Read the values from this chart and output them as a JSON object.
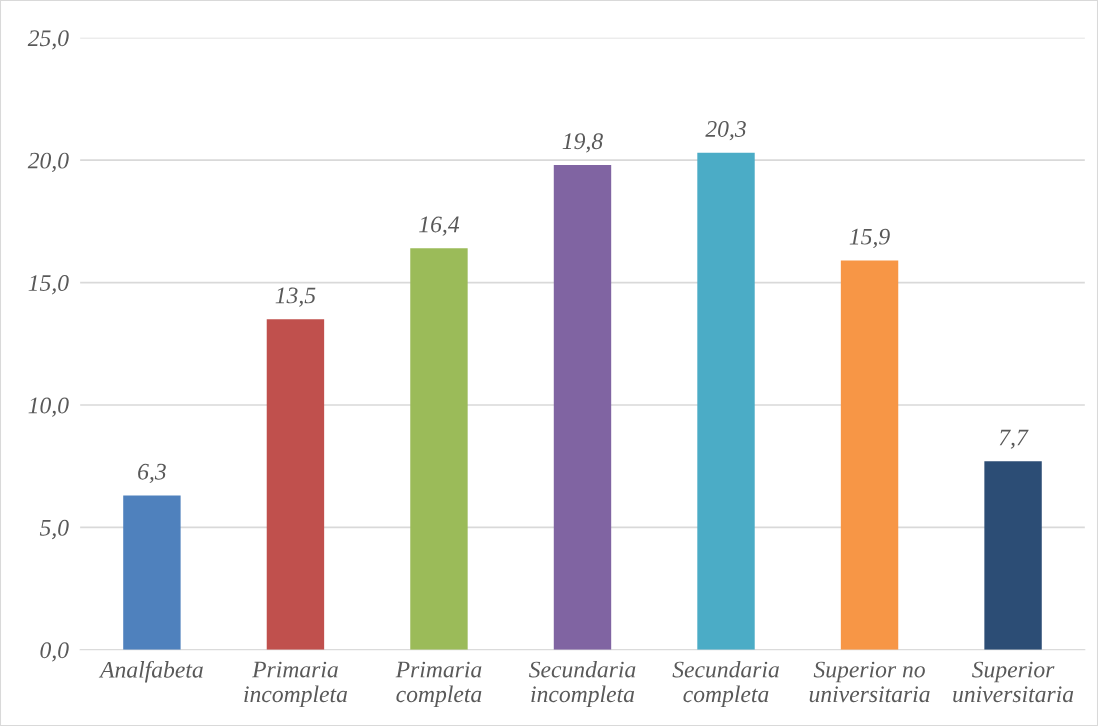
{
  "chart_data": {
    "type": "bar",
    "categories": [
      "Analfabeta",
      "Primaria\nincompleta",
      "Primaria\ncompleta",
      "Secundaria\nincompleta",
      "Secundaria\ncompleta",
      "Superior no\nuniversitaria",
      "Superior\nuniversitaria"
    ],
    "values": [
      6.3,
      13.5,
      16.4,
      19.8,
      20.3,
      15.9,
      7.7
    ],
    "value_labels": [
      "6,3",
      "13,5",
      "16,4",
      "19,8",
      "20,3",
      "15,9",
      "7,7"
    ],
    "colors": [
      "#4f81bd",
      "#c0504d",
      "#9bbb59",
      "#8064a2",
      "#4bacc6",
      "#f79646",
      "#2c4d75"
    ],
    "ylim": [
      0,
      25
    ],
    "yticks": [
      {
        "value": 0,
        "label": "0,0"
      },
      {
        "value": 5,
        "label": "5,0"
      },
      {
        "value": 10,
        "label": "10,0"
      },
      {
        "value": 15,
        "label": "15,0"
      },
      {
        "value": 20,
        "label": "20,0"
      },
      {
        "value": 25,
        "label": "25,0"
      }
    ],
    "grid": "y",
    "legend": false
  }
}
